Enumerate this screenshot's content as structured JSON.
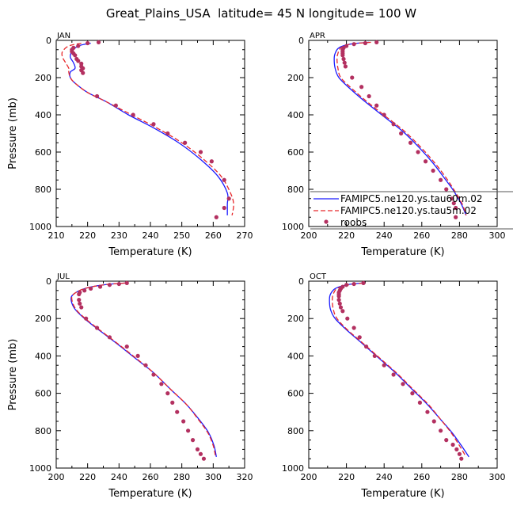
{
  "page_title": "Great_Plains_USA  latitude= 45 N longitude= 100 W",
  "colors": {
    "series1": "#1a1aff",
    "series2": "#e8282b",
    "obs": "#b33060"
  },
  "chart_data": [
    {
      "type": "line",
      "panel_label": "JAN",
      "xlabel": "Temperature (K)",
      "ylabel": "Pressure (mb)",
      "xlim": [
        210,
        270
      ],
      "ylim": [
        1000,
        0
      ],
      "xticks": [
        210,
        220,
        230,
        240,
        250,
        260,
        270
      ],
      "yticks": [
        0,
        200,
        400,
        600,
        800,
        1000
      ],
      "series": [
        {
          "name": "FAMIPC5.ne120.ys.tau60m.02",
          "style": "solid",
          "x": [
            221,
            217,
            215,
            214.5,
            215.5,
            216,
            214.5,
            214.5,
            216,
            220,
            226,
            233,
            241,
            249,
            256,
            261.5,
            264.5,
            264.5,
            264.5
          ],
          "y": [
            15,
            30,
            60,
            90,
            120,
            150,
            170,
            200,
            230,
            280,
            330,
            400,
            470,
            550,
            640,
            730,
            820,
            880,
            940
          ]
        },
        {
          "name": "FAMIPC5.ne120.ys.tau5m.02",
          "style": "dashed",
          "x": [
            218,
            214,
            212,
            212,
            213,
            214,
            214,
            214.5,
            216,
            220,
            226,
            234,
            242,
            250,
            257,
            262.5,
            265.5,
            266.5,
            266
          ],
          "y": [
            15,
            30,
            60,
            90,
            120,
            150,
            170,
            200,
            230,
            280,
            330,
            400,
            470,
            550,
            640,
            730,
            820,
            880,
            940
          ]
        },
        {
          "name": "roobs",
          "style": "markers",
          "x": [
            223.5,
            220,
            217,
            215.5,
            215,
            215,
            215.5,
            216,
            216.5,
            217,
            218,
            218,
            218.5,
            218,
            218.5,
            223,
            229,
            234.5,
            241,
            245.5,
            251,
            256,
            259.5,
            263.5,
            265,
            263.5,
            261
          ],
          "y": [
            10,
            15,
            30,
            40,
            50,
            60,
            70,
            80,
            100,
            110,
            125,
            140,
            150,
            160,
            175,
            300,
            350,
            400,
            450,
            500,
            550,
            600,
            650,
            750,
            850,
            900,
            950
          ]
        }
      ]
    },
    {
      "type": "line",
      "panel_label": "APR",
      "xlabel": "Temperature (K)",
      "ylabel": "",
      "xlim": [
        200,
        300
      ],
      "ylim": [
        1000,
        0
      ],
      "xticks": [
        200,
        220,
        240,
        260,
        280,
        300
      ],
      "yticks": [
        0,
        200,
        400,
        600,
        800,
        1000
      ],
      "series": [
        {
          "name": "FAMIPC5.ne120.ys.tau60m.02",
          "style": "solid",
          "x": [
            232,
            222,
            216,
            214,
            213.5,
            214,
            216,
            222,
            230,
            240,
            250,
            259,
            266,
            272,
            277,
            281,
            283.5
          ],
          "y": [
            10,
            20,
            40,
            70,
            100,
            150,
            200,
            260,
            330,
            410,
            490,
            580,
            660,
            740,
            810,
            880,
            940
          ]
        },
        {
          "name": "FAMIPC5.ne120.ys.tau5m.02",
          "style": "dashed",
          "x": [
            233,
            222,
            217,
            215.5,
            215,
            215.5,
            217,
            223,
            231,
            241,
            251,
            260,
            267,
            273,
            277.5,
            281.5,
            283.5
          ],
          "y": [
            10,
            20,
            40,
            70,
            100,
            150,
            200,
            260,
            330,
            410,
            490,
            580,
            660,
            740,
            810,
            880,
            940
          ]
        },
        {
          "name": "roobs",
          "style": "markers",
          "x": [
            236,
            230,
            224,
            220,
            218.5,
            218,
            218,
            218,
            218,
            218.5,
            219,
            219.5,
            223,
            228,
            232,
            236,
            240,
            245,
            249,
            254,
            258,
            262,
            266,
            270,
            273,
            276,
            277,
            278,
            278
          ],
          "y": [
            10,
            15,
            20,
            30,
            40,
            50,
            60,
            70,
            80,
            100,
            120,
            140,
            200,
            250,
            300,
            350,
            400,
            450,
            500,
            550,
            600,
            650,
            700,
            750,
            800,
            850,
            875,
            900,
            950
          ]
        }
      ]
    },
    {
      "type": "line",
      "panel_label": "JUL",
      "xlabel": "Temperature (K)",
      "ylabel": "Pressure (mb)",
      "xlim": [
        200,
        320
      ],
      "ylim": [
        1000,
        0
      ],
      "xticks": [
        200,
        220,
        240,
        260,
        280,
        300,
        320
      ],
      "yticks": [
        0,
        200,
        400,
        600,
        800,
        1000
      ],
      "series": [
        {
          "name": "FAMIPC5.ne120.ys.tau60m.02",
          "style": "solid",
          "x": [
            244,
            230,
            218,
            211,
            209.5,
            212,
            218,
            227,
            238,
            250,
            262,
            273,
            283,
            291,
            297,
            300.5,
            302
          ],
          "y": [
            10,
            20,
            40,
            70,
            100,
            150,
            200,
            260,
            330,
            410,
            490,
            580,
            660,
            740,
            810,
            880,
            940
          ]
        },
        {
          "name": "FAMIPC5.ne120.ys.tau5m.02",
          "style": "dashed",
          "x": [
            244,
            230,
            218,
            211,
            210,
            212.5,
            218.5,
            227.5,
            238.5,
            250.5,
            262,
            273,
            283,
            290.5,
            296.5,
            300,
            301.5
          ],
          "y": [
            10,
            20,
            40,
            70,
            100,
            150,
            200,
            260,
            330,
            410,
            490,
            580,
            660,
            740,
            810,
            880,
            940
          ]
        },
        {
          "name": "roobs",
          "style": "markers",
          "x": [
            245,
            240,
            234,
            228,
            222,
            218,
            215,
            214.5,
            214.5,
            215,
            216,
            219,
            226,
            234,
            245,
            252,
            257,
            262,
            267,
            271,
            274,
            277,
            281,
            284,
            287,
            290,
            292,
            294
          ],
          "y": [
            10,
            15,
            20,
            30,
            40,
            50,
            60,
            70,
            100,
            120,
            140,
            200,
            250,
            300,
            350,
            400,
            450,
            500,
            550,
            600,
            650,
            700,
            750,
            800,
            850,
            900,
            925,
            950
          ]
        }
      ]
    },
    {
      "type": "line",
      "panel_label": "OCT",
      "xlabel": "Temperature (K)",
      "ylabel": "",
      "xlim": [
        200,
        300
      ],
      "ylim": [
        1000,
        0
      ],
      "xticks": [
        200,
        220,
        240,
        260,
        280,
        300
      ],
      "yticks": [
        0,
        200,
        400,
        600,
        800,
        1000
      ],
      "series": [
        {
          "name": "FAMIPC5.ne120.ys.tau60m.02",
          "style": "solid",
          "x": [
            228,
            220,
            214,
            211.5,
            211,
            211.5,
            214,
            220,
            228,
            237,
            246,
            255,
            263,
            270,
            276,
            281,
            285
          ],
          "y": [
            10,
            20,
            40,
            70,
            100,
            150,
            200,
            260,
            330,
            410,
            490,
            580,
            660,
            740,
            810,
            880,
            940
          ]
        },
        {
          "name": "FAMIPC5.ne120.ys.tau5m.02",
          "style": "dashed",
          "x": [
            229,
            221,
            215,
            213,
            212.5,
            213,
            215,
            220.5,
            228.5,
            237.5,
            246.5,
            255.5,
            263.5,
            270,
            275.5,
            280,
            283.5
          ],
          "y": [
            10,
            20,
            40,
            70,
            100,
            150,
            200,
            260,
            330,
            410,
            490,
            580,
            660,
            740,
            810,
            880,
            940
          ]
        },
        {
          "name": "roobs",
          "style": "markers",
          "x": [
            229,
            224,
            220,
            218,
            217,
            216.5,
            216,
            216,
            216,
            216,
            216.5,
            217,
            218,
            220.5,
            224,
            227,
            230.5,
            235,
            240,
            245,
            250,
            255,
            259,
            263,
            266.5,
            270,
            273,
            276.5,
            278.5,
            280,
            281
          ],
          "y": [
            10,
            15,
            20,
            30,
            40,
            50,
            60,
            70,
            80,
            100,
            120,
            140,
            160,
            200,
            250,
            300,
            350,
            400,
            450,
            500,
            550,
            600,
            650,
            700,
            750,
            800,
            850,
            875,
            900,
            925,
            950
          ]
        }
      ]
    }
  ]
}
